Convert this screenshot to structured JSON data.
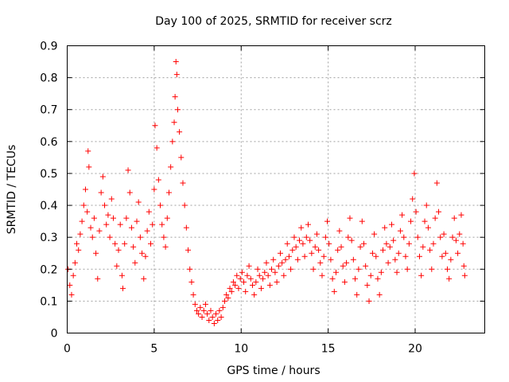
{
  "chart_data": {
    "type": "scatter",
    "title": "Day 100 of 2025, SRMTID for receiver scrz",
    "xlabel": "GPS time / hours",
    "ylabel": "SRMTID / TECUs",
    "xlim": [
      0,
      24
    ],
    "ylim": [
      0,
      0.9
    ],
    "xticks": [
      0,
      5,
      10,
      15,
      20
    ],
    "xtick_labels": [
      "0",
      "5",
      "10",
      "15",
      "20"
    ],
    "yticks": [
      0,
      0.1,
      0.2,
      0.3,
      0.4,
      0.5,
      0.6,
      0.7,
      0.8,
      0.9
    ],
    "ytick_labels": [
      "0",
      "0.1",
      "0.2",
      "0.3",
      "0.4",
      "0.5",
      "0.6",
      "0.7",
      "0.8",
      "0.9"
    ],
    "grid": true,
    "marker": "+",
    "color": "#ff0000",
    "series": [
      {
        "name": "SRMTID",
        "points": [
          [
            0.05,
            0.2
          ],
          [
            0.15,
            0.15
          ],
          [
            0.25,
            0.12
          ],
          [
            0.35,
            0.18
          ],
          [
            0.45,
            0.22
          ],
          [
            0.55,
            0.28
          ],
          [
            0.65,
            0.26
          ],
          [
            0.75,
            0.31
          ],
          [
            0.85,
            0.35
          ],
          [
            0.95,
            0.4
          ],
          [
            1.05,
            0.45
          ],
          [
            1.15,
            0.38
          ],
          [
            1.2,
            0.57
          ],
          [
            1.25,
            0.52
          ],
          [
            1.35,
            0.33
          ],
          [
            1.45,
            0.3
          ],
          [
            1.55,
            0.36
          ],
          [
            1.65,
            0.25
          ],
          [
            1.75,
            0.17
          ],
          [
            1.85,
            0.32
          ],
          [
            1.95,
            0.44
          ],
          [
            2.05,
            0.49
          ],
          [
            2.15,
            0.4
          ],
          [
            2.25,
            0.34
          ],
          [
            2.35,
            0.37
          ],
          [
            2.45,
            0.3
          ],
          [
            2.55,
            0.42
          ],
          [
            2.65,
            0.36
          ],
          [
            2.75,
            0.28
          ],
          [
            2.85,
            0.21
          ],
          [
            2.95,
            0.26
          ],
          [
            3.05,
            0.34
          ],
          [
            3.15,
            0.18
          ],
          [
            3.2,
            0.14
          ],
          [
            3.3,
            0.28
          ],
          [
            3.4,
            0.36
          ],
          [
            3.5,
            0.51
          ],
          [
            3.6,
            0.44
          ],
          [
            3.7,
            0.33
          ],
          [
            3.8,
            0.27
          ],
          [
            3.9,
            0.22
          ],
          [
            4.0,
            0.35
          ],
          [
            4.1,
            0.41
          ],
          [
            4.2,
            0.3
          ],
          [
            4.3,
            0.25
          ],
          [
            4.4,
            0.17
          ],
          [
            4.5,
            0.24
          ],
          [
            4.6,
            0.32
          ],
          [
            4.7,
            0.38
          ],
          [
            4.8,
            0.28
          ],
          [
            4.9,
            0.34
          ],
          [
            5.0,
            0.45
          ],
          [
            5.05,
            0.65
          ],
          [
            5.15,
            0.58
          ],
          [
            5.25,
            0.48
          ],
          [
            5.35,
            0.4
          ],
          [
            5.45,
            0.34
          ],
          [
            5.55,
            0.3
          ],
          [
            5.65,
            0.27
          ],
          [
            5.75,
            0.36
          ],
          [
            5.85,
            0.44
          ],
          [
            5.95,
            0.52
          ],
          [
            6.05,
            0.6
          ],
          [
            6.15,
            0.66
          ],
          [
            6.2,
            0.74
          ],
          [
            6.25,
            0.85
          ],
          [
            6.3,
            0.81
          ],
          [
            6.35,
            0.7
          ],
          [
            6.45,
            0.63
          ],
          [
            6.55,
            0.55
          ],
          [
            6.65,
            0.47
          ],
          [
            6.75,
            0.4
          ],
          [
            6.85,
            0.33
          ],
          [
            6.95,
            0.26
          ],
          [
            7.05,
            0.2
          ],
          [
            7.15,
            0.16
          ],
          [
            7.25,
            0.12
          ],
          [
            7.35,
            0.09
          ],
          [
            7.45,
            0.07
          ],
          [
            7.55,
            0.06
          ],
          [
            7.65,
            0.08
          ],
          [
            7.75,
            0.05
          ],
          [
            7.85,
            0.07
          ],
          [
            7.95,
            0.09
          ],
          [
            8.05,
            0.06
          ],
          [
            8.15,
            0.04
          ],
          [
            8.25,
            0.07
          ],
          [
            8.35,
            0.05
          ],
          [
            8.45,
            0.03
          ],
          [
            8.55,
            0.06
          ],
          [
            8.65,
            0.04
          ],
          [
            8.75,
            0.07
          ],
          [
            8.85,
            0.05
          ],
          [
            8.95,
            0.08
          ],
          [
            9.05,
            0.1
          ],
          [
            9.15,
            0.12
          ],
          [
            9.25,
            0.11
          ],
          [
            9.35,
            0.14
          ],
          [
            9.45,
            0.13
          ],
          [
            9.55,
            0.16
          ],
          [
            9.65,
            0.15
          ],
          [
            9.75,
            0.18
          ],
          [
            9.85,
            0.14
          ],
          [
            9.95,
            0.17
          ],
          [
            10.05,
            0.19
          ],
          [
            10.15,
            0.16
          ],
          [
            10.25,
            0.13
          ],
          [
            10.35,
            0.18
          ],
          [
            10.45,
            0.21
          ],
          [
            10.55,
            0.17
          ],
          [
            10.65,
            0.15
          ],
          [
            10.75,
            0.12
          ],
          [
            10.85,
            0.16
          ],
          [
            10.95,
            0.2
          ],
          [
            11.05,
            0.18
          ],
          [
            11.15,
            0.14
          ],
          [
            11.25,
            0.17
          ],
          [
            11.35,
            0.19
          ],
          [
            11.45,
            0.22
          ],
          [
            11.55,
            0.18
          ],
          [
            11.65,
            0.15
          ],
          [
            11.75,
            0.2
          ],
          [
            11.85,
            0.23
          ],
          [
            11.95,
            0.19
          ],
          [
            12.05,
            0.16
          ],
          [
            12.15,
            0.21
          ],
          [
            12.25,
            0.25
          ],
          [
            12.35,
            0.22
          ],
          [
            12.45,
            0.18
          ],
          [
            12.55,
            0.23
          ],
          [
            12.65,
            0.28
          ],
          [
            12.75,
            0.24
          ],
          [
            12.85,
            0.2
          ],
          [
            12.95,
            0.26
          ],
          [
            13.05,
            0.3
          ],
          [
            13.15,
            0.27
          ],
          [
            13.25,
            0.23
          ],
          [
            13.35,
            0.29
          ],
          [
            13.45,
            0.33
          ],
          [
            13.55,
            0.28
          ],
          [
            13.65,
            0.24
          ],
          [
            13.75,
            0.3
          ],
          [
            13.85,
            0.34
          ],
          [
            13.95,
            0.29
          ],
          [
            14.05,
            0.25
          ],
          [
            14.15,
            0.2
          ],
          [
            14.25,
            0.27
          ],
          [
            14.35,
            0.31
          ],
          [
            14.45,
            0.26
          ],
          [
            14.55,
            0.22
          ],
          [
            14.65,
            0.18
          ],
          [
            14.75,
            0.24
          ],
          [
            14.85,
            0.3
          ],
          [
            14.95,
            0.35
          ],
          [
            15.05,
            0.28
          ],
          [
            15.15,
            0.23
          ],
          [
            15.25,
            0.17
          ],
          [
            15.35,
            0.13
          ],
          [
            15.45,
            0.19
          ],
          [
            15.55,
            0.26
          ],
          [
            15.65,
            0.32
          ],
          [
            15.75,
            0.27
          ],
          [
            15.85,
            0.21
          ],
          [
            15.95,
            0.16
          ],
          [
            16.05,
            0.22
          ],
          [
            16.15,
            0.3
          ],
          [
            16.25,
            0.36
          ],
          [
            16.35,
            0.29
          ],
          [
            16.45,
            0.23
          ],
          [
            16.55,
            0.17
          ],
          [
            16.65,
            0.12
          ],
          [
            16.75,
            0.2
          ],
          [
            16.85,
            0.27
          ],
          [
            16.95,
            0.35
          ],
          [
            17.05,
            0.28
          ],
          [
            17.15,
            0.21
          ],
          [
            17.25,
            0.15
          ],
          [
            17.35,
            0.1
          ],
          [
            17.45,
            0.18
          ],
          [
            17.55,
            0.25
          ],
          [
            17.65,
            0.31
          ],
          [
            17.75,
            0.24
          ],
          [
            17.85,
            0.17
          ],
          [
            17.95,
            0.12
          ],
          [
            18.05,
            0.19
          ],
          [
            18.15,
            0.26
          ],
          [
            18.25,
            0.33
          ],
          [
            18.35,
            0.28
          ],
          [
            18.45,
            0.22
          ],
          [
            18.55,
            0.27
          ],
          [
            18.65,
            0.34
          ],
          [
            18.75,
            0.29
          ],
          [
            18.85,
            0.23
          ],
          [
            18.95,
            0.19
          ],
          [
            19.05,
            0.25
          ],
          [
            19.15,
            0.32
          ],
          [
            19.25,
            0.37
          ],
          [
            19.35,
            0.3
          ],
          [
            19.45,
            0.24
          ],
          [
            19.55,
            0.2
          ],
          [
            19.65,
            0.28
          ],
          [
            19.75,
            0.35
          ],
          [
            19.85,
            0.42
          ],
          [
            19.95,
            0.5
          ],
          [
            20.05,
            0.38
          ],
          [
            20.15,
            0.3
          ],
          [
            20.25,
            0.24
          ],
          [
            20.35,
            0.18
          ],
          [
            20.45,
            0.27
          ],
          [
            20.55,
            0.35
          ],
          [
            20.65,
            0.4
          ],
          [
            20.75,
            0.33
          ],
          [
            20.85,
            0.26
          ],
          [
            20.95,
            0.2
          ],
          [
            21.05,
            0.28
          ],
          [
            21.15,
            0.36
          ],
          [
            21.25,
            0.47
          ],
          [
            21.35,
            0.38
          ],
          [
            21.45,
            0.3
          ],
          [
            21.55,
            0.24
          ],
          [
            21.65,
            0.31
          ],
          [
            21.75,
            0.25
          ],
          [
            21.85,
            0.2
          ],
          [
            21.95,
            0.17
          ],
          [
            22.05,
            0.23
          ],
          [
            22.15,
            0.3
          ],
          [
            22.25,
            0.36
          ],
          [
            22.35,
            0.29
          ],
          [
            22.45,
            0.25
          ],
          [
            22.55,
            0.31
          ],
          [
            22.65,
            0.37
          ],
          [
            22.75,
            0.28
          ],
          [
            22.8,
            0.21
          ],
          [
            22.85,
            0.18
          ]
        ]
      }
    ]
  }
}
